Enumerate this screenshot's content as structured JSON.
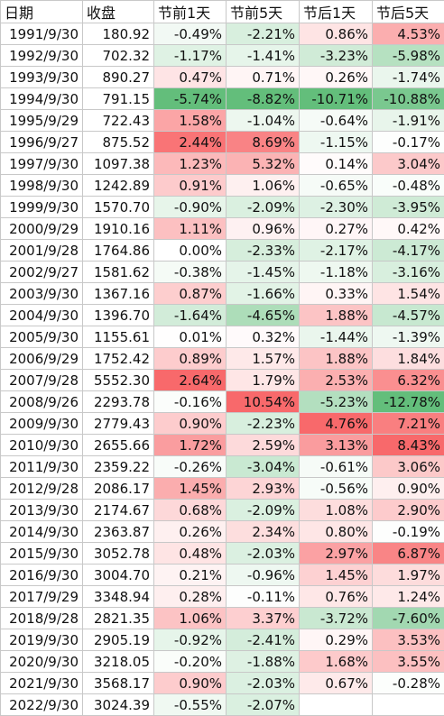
{
  "table": {
    "headers": [
      "日期",
      "收盘",
      "节前1天",
      "节前5天",
      "节后1天",
      "节后5天"
    ],
    "rows": [
      {
        "date": "1991/9/30",
        "close": "180.92",
        "vals": [
          "-0.49%",
          "-2.21%",
          "0.86%",
          "4.53%"
        ]
      },
      {
        "date": "1992/9/30",
        "close": "702.32",
        "vals": [
          "-1.17%",
          "-1.41%",
          "-3.23%",
          "-5.98%"
        ]
      },
      {
        "date": "1993/9/30",
        "close": "890.27",
        "vals": [
          "0.47%",
          "0.71%",
          "0.26%",
          "-1.74%"
        ]
      },
      {
        "date": "1994/9/30",
        "close": "791.15",
        "vals": [
          "-5.74%",
          "-8.82%",
          "-10.71%",
          "-10.88%"
        ]
      },
      {
        "date": "1995/9/29",
        "close": "722.43",
        "vals": [
          "1.58%",
          "-1.04%",
          "-0.64%",
          "-1.91%"
        ]
      },
      {
        "date": "1996/9/27",
        "close": "875.52",
        "vals": [
          "2.44%",
          "8.69%",
          "-1.15%",
          "-0.17%"
        ]
      },
      {
        "date": "1997/9/30",
        "close": "1097.38",
        "vals": [
          "1.23%",
          "5.32%",
          "0.14%",
          "3.04%"
        ]
      },
      {
        "date": "1998/9/30",
        "close": "1242.89",
        "vals": [
          "0.91%",
          "1.06%",
          "-0.65%",
          "-0.48%"
        ]
      },
      {
        "date": "1999/9/30",
        "close": "1570.70",
        "vals": [
          "-0.90%",
          "-2.09%",
          "-2.30%",
          "-3.95%"
        ]
      },
      {
        "date": "2000/9/29",
        "close": "1910.16",
        "vals": [
          "1.11%",
          "0.96%",
          "0.27%",
          "0.42%"
        ]
      },
      {
        "date": "2001/9/28",
        "close": "1764.86",
        "vals": [
          "0.00%",
          "-2.33%",
          "-2.17%",
          "-4.17%"
        ]
      },
      {
        "date": "2002/9/27",
        "close": "1581.62",
        "vals": [
          "-0.38%",
          "-1.45%",
          "-1.18%",
          "-3.16%"
        ]
      },
      {
        "date": "2003/9/30",
        "close": "1367.16",
        "vals": [
          "0.87%",
          "-1.66%",
          "0.33%",
          "1.54%"
        ]
      },
      {
        "date": "2004/9/30",
        "close": "1396.70",
        "vals": [
          "-1.64%",
          "-4.65%",
          "1.88%",
          "-4.57%"
        ]
      },
      {
        "date": "2005/9/30",
        "close": "1155.61",
        "vals": [
          "0.01%",
          "0.32%",
          "-1.44%",
          "-1.39%"
        ]
      },
      {
        "date": "2006/9/29",
        "close": "1752.42",
        "vals": [
          "0.89%",
          "1.57%",
          "1.88%",
          "1.84%"
        ]
      },
      {
        "date": "2007/9/28",
        "close": "5552.30",
        "vals": [
          "2.64%",
          "1.79%",
          "2.53%",
          "6.32%"
        ]
      },
      {
        "date": "2008/9/26",
        "close": "2293.78",
        "vals": [
          "-0.16%",
          "10.54%",
          "-5.23%",
          "-12.78%"
        ]
      },
      {
        "date": "2009/9/30",
        "close": "2779.43",
        "vals": [
          "0.90%",
          "-2.23%",
          "4.76%",
          "7.21%"
        ]
      },
      {
        "date": "2010/9/30",
        "close": "2655.66",
        "vals": [
          "1.72%",
          "2.59%",
          "3.13%",
          "8.43%"
        ]
      },
      {
        "date": "2011/9/30",
        "close": "2359.22",
        "vals": [
          "-0.26%",
          "-3.04%",
          "-0.61%",
          "3.06%"
        ]
      },
      {
        "date": "2012/9/28",
        "close": "2086.17",
        "vals": [
          "1.45%",
          "2.93%",
          "-0.56%",
          "0.90%"
        ]
      },
      {
        "date": "2013/9/30",
        "close": "2174.67",
        "vals": [
          "0.68%",
          "-2.09%",
          "1.08%",
          "2.90%"
        ]
      },
      {
        "date": "2014/9/30",
        "close": "2363.87",
        "vals": [
          "0.26%",
          "2.34%",
          "0.80%",
          "-0.19%"
        ]
      },
      {
        "date": "2015/9/30",
        "close": "3052.78",
        "vals": [
          "0.48%",
          "-2.03%",
          "2.97%",
          "6.87%"
        ]
      },
      {
        "date": "2016/9/30",
        "close": "3004.70",
        "vals": [
          "0.21%",
          "-0.96%",
          "1.45%",
          "1.97%"
        ]
      },
      {
        "date": "2017/9/29",
        "close": "3348.94",
        "vals": [
          "0.28%",
          "-0.11%",
          "0.76%",
          "1.24%"
        ]
      },
      {
        "date": "2018/9/28",
        "close": "2821.35",
        "vals": [
          "1.06%",
          "3.37%",
          "-3.72%",
          "-7.60%"
        ]
      },
      {
        "date": "2019/9/30",
        "close": "2905.19",
        "vals": [
          "-0.92%",
          "-2.41%",
          "0.29%",
          "3.53%"
        ]
      },
      {
        "date": "2020/9/30",
        "close": "3218.05",
        "vals": [
          "-0.20%",
          "-1.88%",
          "1.68%",
          "3.55%"
        ]
      },
      {
        "date": "2021/9/30",
        "close": "3568.17",
        "vals": [
          "0.90%",
          "-2.03%",
          "0.67%",
          "-0.28%"
        ]
      },
      {
        "date": "2022/9/30",
        "close": "3024.39",
        "vals": [
          "-0.55%",
          "-2.07%",
          "",
          ""
        ]
      }
    ]
  },
  "colors": {
    "positive": "#f8696b",
    "negative": "#63be7b",
    "neutral": "#ffffff",
    "border": "#c8c8c8"
  }
}
